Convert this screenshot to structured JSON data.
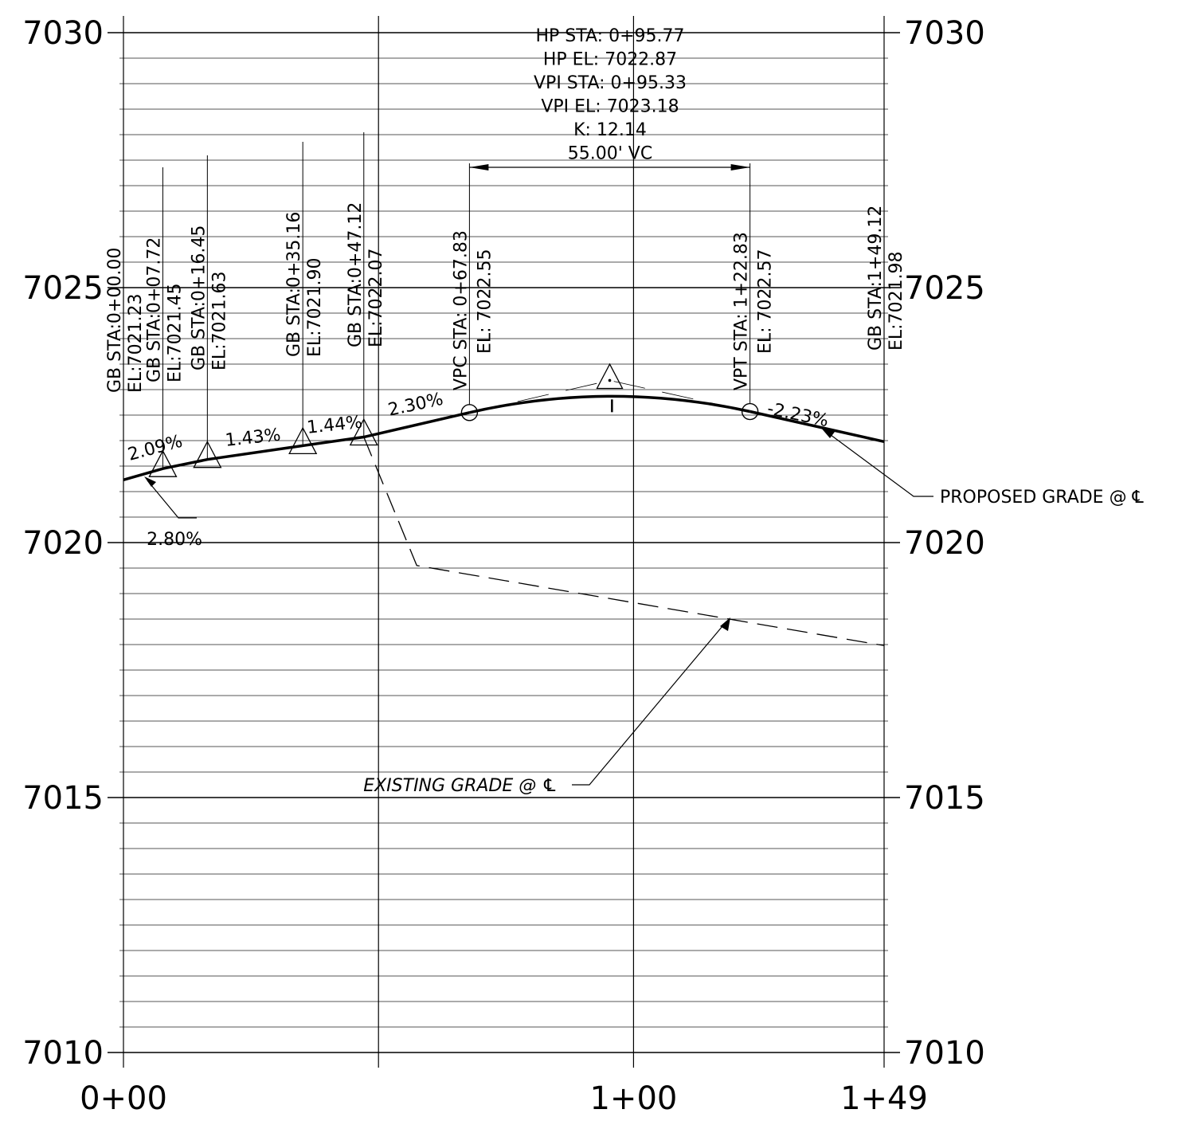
{
  "chart_data": {
    "type": "line",
    "x_range": [
      0,
      149.12
    ],
    "y_range": [
      7010,
      7030
    ],
    "y_ticks": [
      {
        "value": 7030,
        "label": "7030"
      },
      {
        "value": 7025,
        "label": "7025"
      },
      {
        "value": 7020,
        "label": "7020"
      },
      {
        "value": 7015,
        "label": "7015"
      },
      {
        "value": 7010,
        "label": "7010"
      }
    ],
    "x_ticks": [
      {
        "value": 0,
        "label": "0+00"
      },
      {
        "value": 100,
        "label": "1+00"
      },
      {
        "value": 149.12,
        "label": "1+49"
      }
    ],
    "grid": true,
    "proposed_grade": {
      "label": "PROPOSED GRADE @ ℄",
      "points": [
        {
          "x": 0,
          "y": 7021.23
        },
        {
          "x": 7.72,
          "y": 7021.45
        },
        {
          "x": 16.45,
          "y": 7021.63
        },
        {
          "x": 35.16,
          "y": 7021.9
        },
        {
          "x": 47.12,
          "y": 7022.07
        },
        {
          "x": 67.83,
          "y": 7022.55
        }
      ],
      "vertical_curve": {
        "start_x": 67.83,
        "start_y": 7022.55,
        "end_x": 122.83,
        "end_y": 7022.57,
        "pvi_x": 95.33,
        "pvi_y": 7023.18
      },
      "tail": [
        {
          "x": 122.83,
          "y": 7022.57
        },
        {
          "x": 149.12,
          "y": 7021.98
        }
      ]
    },
    "existing_grade": {
      "label": "EXISTING GRADE @ ℄",
      "points": [
        {
          "x": 47.12,
          "y": 7022.07
        },
        {
          "x": 57.5,
          "y": 7019.55
        },
        {
          "x": 149.12,
          "y": 7017.98
        }
      ]
    },
    "grade_breaks": [
      {
        "x": 0,
        "y": 7021.23,
        "sta": "GB STA:0+00.00",
        "el": "EL:7021.23"
      },
      {
        "x": 7.72,
        "y": 7021.45,
        "sta": "GB STA:0+07.72",
        "el": "EL:7021.45"
      },
      {
        "x": 16.45,
        "y": 7021.63,
        "sta": "GB STA:0+16.45",
        "el": "EL:7021.63"
      },
      {
        "x": 35.16,
        "y": 7021.9,
        "sta": "GB STA:0+35.16",
        "el": "EL:7021.90"
      },
      {
        "x": 47.12,
        "y": 7022.07,
        "sta": "GB STA:0+47.12",
        "el": "EL:7022.07"
      },
      {
        "x": 149.12,
        "y": 7021.98,
        "sta": "GB STA:1+49.12",
        "el": "EL:7021.98"
      }
    ],
    "vpc": {
      "x": 67.83,
      "y": 7022.55,
      "sta": "VPC STA:  0+67.83",
      "el": "EL:  7022.55"
    },
    "vpt": {
      "x": 122.83,
      "y": 7022.57,
      "sta": "VPT STA:  1+22.83",
      "el": "EL:  7022.57"
    },
    "vpi": {
      "x": 95.33,
      "y": 7023.18
    },
    "high_point": {
      "x": 95.77,
      "y": 7022.87
    },
    "curve_info": [
      "HP STA:  0+95.77",
      "HP EL:  7022.87",
      "VPI STA:  0+95.33",
      "VPI EL:  7023.18",
      "K:  12.14",
      "55.00' VC"
    ],
    "slopes": [
      {
        "label": "2.80%",
        "x": 10.0,
        "y": 7019.95,
        "angle": 0
      },
      {
        "label": "2.09%",
        "x": 6.5,
        "y": 7021.75,
        "angle": -15
      },
      {
        "label": "1.43%",
        "x": 25.5,
        "y": 7021.95,
        "angle": -6
      },
      {
        "label": "1.44%",
        "x": 41.5,
        "y": 7022.2,
        "angle": -6
      },
      {
        "label": "2.30%",
        "x": 57.5,
        "y": 7022.6,
        "angle": -12
      },
      {
        "label": "-2.23%",
        "x": 132.0,
        "y": 7022.4,
        "angle": 12
      }
    ]
  }
}
